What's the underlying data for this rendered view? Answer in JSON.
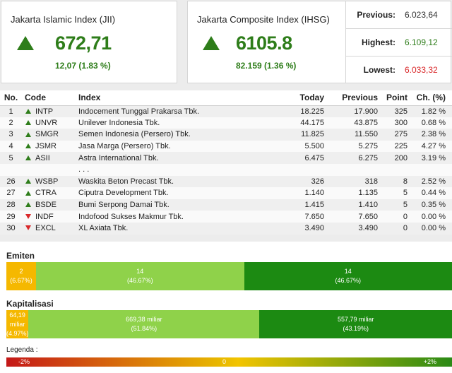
{
  "jii": {
    "title": "Jakarta Islamic Index (JII)",
    "value": "672,71",
    "change": "12,07 (1.83 %)"
  },
  "ihsg": {
    "title": "Jakarta Composite Index (IHSG)",
    "value": "6105.8",
    "change": "82.159 (1.36 %)"
  },
  "stats": [
    {
      "label": "Previous:",
      "value": "6.023,64",
      "color": "#333333"
    },
    {
      "label": "Highest:",
      "value": "6.109,12",
      "color": "#2e7d1a"
    },
    {
      "label": "Lowest:",
      "value": "6.033,32",
      "color": "#d9282a"
    }
  ],
  "table": {
    "headers": [
      "No.",
      "Code",
      "Index",
      "Today",
      "Previous",
      "Point",
      "Ch. (%)"
    ],
    "rows": [
      {
        "no": "1",
        "dir": "up",
        "code": "INTP",
        "name": "Indocement Tunggal Prakarsa Tbk.",
        "today": "18.225",
        "prev": "17.900",
        "point": "325",
        "ch": "1.82 %"
      },
      {
        "no": "2",
        "dir": "up",
        "code": "UNVR",
        "name": "Unilever Indonesia Tbk.",
        "today": "44.175",
        "prev": "43.875",
        "point": "300",
        "ch": "0.68 %"
      },
      {
        "no": "3",
        "dir": "up",
        "code": "SMGR",
        "name": "Semen Indonesia (Persero) Tbk.",
        "today": "11.825",
        "prev": "11.550",
        "point": "275",
        "ch": "2.38 %"
      },
      {
        "no": "4",
        "dir": "up",
        "code": "JSMR",
        "name": "Jasa Marga (Persero) Tbk.",
        "today": "5.500",
        "prev": "5.275",
        "point": "225",
        "ch": "4.27 %"
      },
      {
        "no": "5",
        "dir": "up",
        "code": "ASII",
        "name": "Astra International Tbk.",
        "today": "6.475",
        "prev": "6.275",
        "point": "200",
        "ch": "3.19 %"
      },
      {
        "no": "",
        "dir": "",
        "code": "",
        "name": ". . .",
        "today": "",
        "prev": "",
        "point": "",
        "ch": ""
      },
      {
        "no": "26",
        "dir": "up",
        "code": "WSBP",
        "name": "Waskita Beton Precast Tbk.",
        "today": "326",
        "prev": "318",
        "point": "8",
        "ch": "2.52 %"
      },
      {
        "no": "27",
        "dir": "up",
        "code": "CTRA",
        "name": "Ciputra Development Tbk.",
        "today": "1.140",
        "prev": "1.135",
        "point": "5",
        "ch": "0.44 %"
      },
      {
        "no": "28",
        "dir": "up",
        "code": "BSDE",
        "name": "Bumi Serpong Damai Tbk.",
        "today": "1.415",
        "prev": "1.410",
        "point": "5",
        "ch": "0.35 %"
      },
      {
        "no": "29",
        "dir": "down",
        "code": "INDF",
        "name": "Indofood Sukses Makmur Tbk.",
        "today": "7.650",
        "prev": "7.650",
        "point": "0",
        "ch": "0.00 %"
      },
      {
        "no": "30",
        "dir": "down",
        "code": "EXCL",
        "name": "XL Axiata Tbk.",
        "today": "3.490",
        "prev": "3.490",
        "point": "0",
        "ch": "0.00 %"
      }
    ]
  },
  "emiten": {
    "title": "Emiten",
    "segments": [
      {
        "l1": "2",
        "l2": "(6.67%)",
        "share": 6.67,
        "tone": "orange"
      },
      {
        "l1": "14",
        "l2": "(46.67%)",
        "share": 46.67,
        "tone": "light"
      },
      {
        "l1": "14",
        "l2": "(46.67%)",
        "share": 46.67,
        "tone": "dark"
      }
    ]
  },
  "kapitalisasi": {
    "title": "Kapitalisasi",
    "segments": [
      {
        "l1": "64,19 miliar",
        "l2": "(4.97%)",
        "share": 4.97,
        "tone": "orange"
      },
      {
        "l1": "669,38 miliar",
        "l2": "(51.84%)",
        "share": 51.84,
        "tone": "light"
      },
      {
        "l1": "557,79 miliar",
        "l2": "(43.19%)",
        "share": 43.19,
        "tone": "dark"
      }
    ]
  },
  "legend": {
    "label": "Legenda :",
    "min": "-2%",
    "mid": "0",
    "max": "+2%"
  }
}
